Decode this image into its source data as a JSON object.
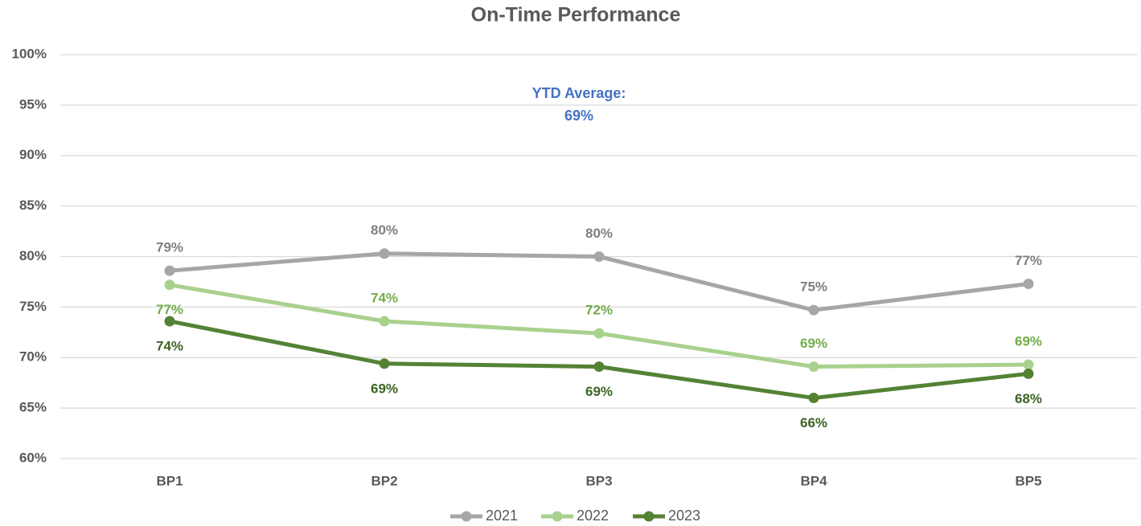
{
  "chart_data": {
    "type": "line",
    "title": "On-Time Performance",
    "annotation": [
      "YTD Average:",
      "69%"
    ],
    "categories": [
      "BP1",
      "BP2",
      "BP3",
      "BP4",
      "BP5"
    ],
    "series": [
      {
        "name": "2021",
        "color": "#a6a6a6",
        "label_color": "#7f7f7f",
        "values": [
          78.6,
          80.3,
          80.0,
          74.7,
          77.3
        ],
        "value_labels": [
          "79%",
          "80%",
          "80%",
          "75%",
          "77%"
        ]
      },
      {
        "name": "2022",
        "color": "#a9d18e",
        "label_color": "#70ad47",
        "values": [
          77.2,
          73.6,
          72.4,
          69.1,
          69.3
        ],
        "value_labels": [
          "77%",
          "74%",
          "72%",
          "69%",
          "69%"
        ]
      },
      {
        "name": "2023",
        "color": "#548235",
        "label_color": "#3b6325",
        "values": [
          73.6,
          69.4,
          69.1,
          66.0,
          68.4
        ],
        "value_labels": [
          "74%",
          "69%",
          "69%",
          "66%",
          "68%"
        ]
      }
    ],
    "ylim": [
      60,
      100
    ],
    "yticks": [
      {
        "value": 60,
        "label": "60%"
      },
      {
        "value": 65,
        "label": "65%"
      },
      {
        "value": 70,
        "label": "70%"
      },
      {
        "value": 75,
        "label": "75%"
      },
      {
        "value": 80,
        "label": "80%"
      },
      {
        "value": 85,
        "label": "85%"
      },
      {
        "value": 90,
        "label": "90%"
      },
      {
        "value": 95,
        "label": "95%"
      },
      {
        "value": 100,
        "label": "100%"
      }
    ],
    "grid": true,
    "legend": "bottom"
  }
}
